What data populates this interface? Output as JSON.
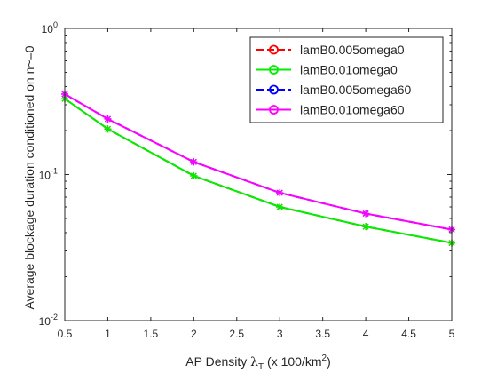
{
  "chart_data": {
    "type": "line",
    "xlabel_main": "AP Density ",
    "xlabel_lambda": "λ",
    "xlabel_sub": "T",
    "xlabel_units": " (x 100/km",
    "xlabel_sup": "2",
    "xlabel_close": ")",
    "ylabel": "Average blockage duration conditioned on n~=0",
    "x_ticks": [
      "0.5",
      "1",
      "1.5",
      "2",
      "2.5",
      "3",
      "3.5",
      "4",
      "4.5",
      "5"
    ],
    "y_ticks": [
      {
        "label": "10",
        "exp": "0",
        "value": 1
      },
      {
        "label": "10",
        "exp": "-1",
        "value": 0.1
      },
      {
        "label": "10",
        "exp": "-2",
        "value": 0.01
      }
    ],
    "xlim": [
      0.5,
      5
    ],
    "ylim": [
      0.01,
      1
    ],
    "y_scale": "log",
    "grid": false,
    "legend_position": "top-right",
    "x": [
      0.5,
      1,
      2,
      3,
      4,
      5
    ],
    "series": [
      {
        "name": "lamB0.005omega0",
        "color": "#ff0000",
        "values": [
          0.33,
          0.205,
          0.098,
          0.06,
          0.044,
          0.034
        ]
      },
      {
        "name": "lamB0.01omega0",
        "color": "#00ee00",
        "values": [
          0.33,
          0.205,
          0.098,
          0.06,
          0.044,
          0.034
        ]
      },
      {
        "name": "lamB0.005omega60",
        "color": "#0000ff",
        "values": [
          0.355,
          0.24,
          0.122,
          0.075,
          0.054,
          0.042
        ]
      },
      {
        "name": "lamB0.01omega60",
        "color": "#ff00ff",
        "values": [
          0.355,
          0.24,
          0.122,
          0.075,
          0.054,
          0.042
        ]
      }
    ]
  }
}
